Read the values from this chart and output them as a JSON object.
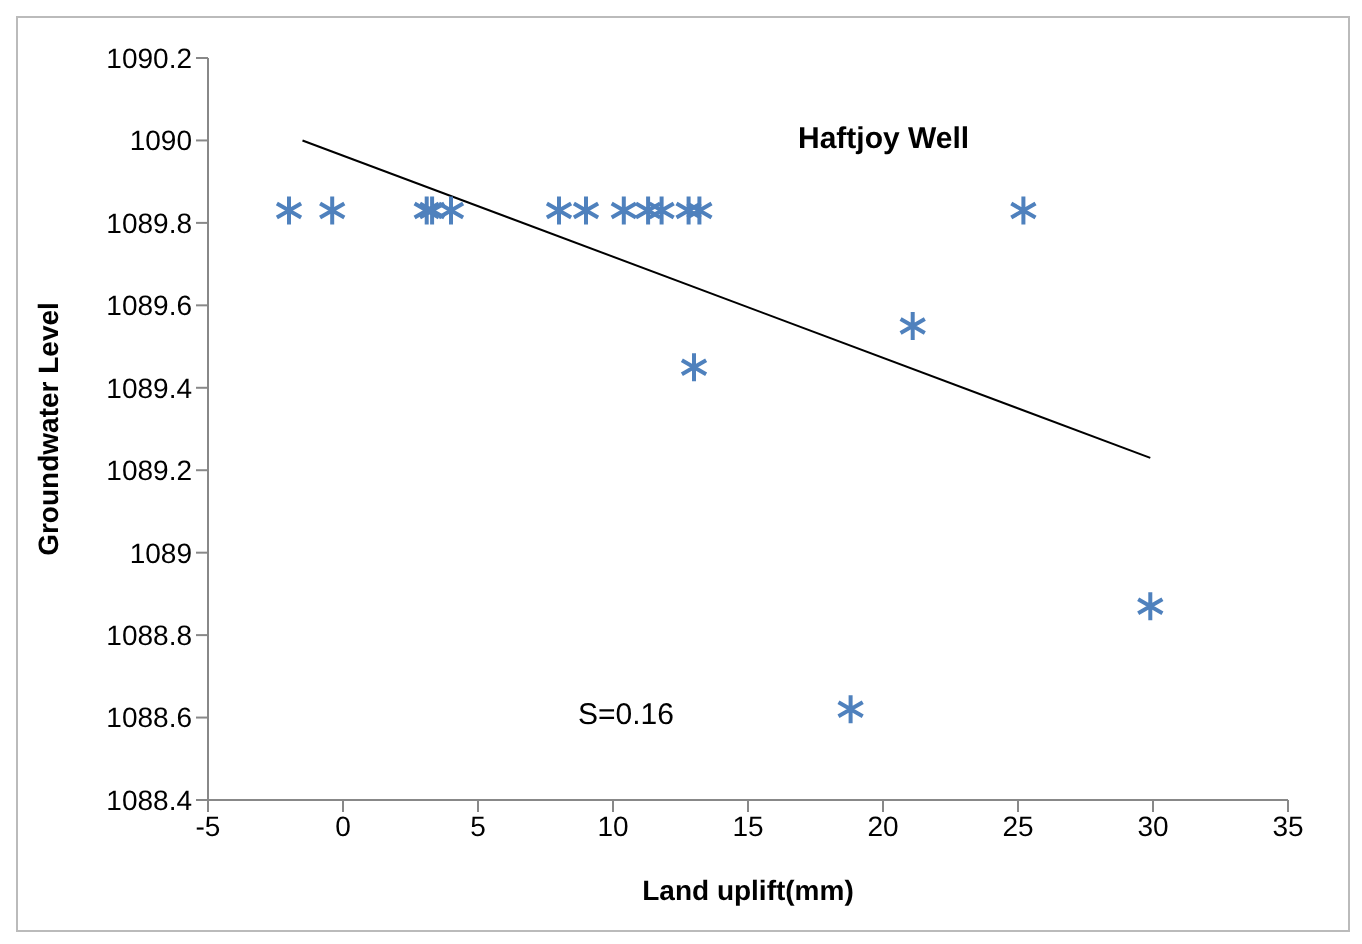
{
  "chart_data": {
    "type": "scatter",
    "title": "Haftjoy  Well",
    "xlabel": "Land uplift(mm)",
    "ylabel": "Groundwater Level",
    "xlim": [
      -5,
      35
    ],
    "xticks": [
      -5,
      0,
      5,
      10,
      15,
      20,
      25,
      30,
      35
    ],
    "ylim": [
      1088.4,
      1090.2
    ],
    "yticks": [
      {
        "value": 1088.4,
        "label": "1088.4"
      },
      {
        "value": 1088.6,
        "label": "1088.6"
      },
      {
        "value": 1088.8,
        "label": "1088.8"
      },
      {
        "value": 1089,
        "label": "1089"
      },
      {
        "value": 1089.2,
        "label": "1089.2"
      },
      {
        "value": 1089.4,
        "label": "1089.4"
      },
      {
        "value": 1089.6,
        "label": "1089.6"
      },
      {
        "value": 1089.8,
        "label": "1089.8"
      },
      {
        "value": 1090,
        "label": "1090"
      },
      {
        "value": 1090.2,
        "label": "1090.2"
      }
    ],
    "grid": false,
    "series": [
      {
        "marker": "cross",
        "color": "#4f81bd",
        "x": [
          -2,
          -0.4,
          3.1,
          3.3,
          4,
          8,
          9,
          10.4,
          11.3,
          11.8,
          12.8,
          13.2,
          13,
          18.8,
          21.1,
          25.2,
          29.9
        ],
        "values": [
          1089.83,
          1089.83,
          1089.83,
          1089.83,
          1089.83,
          1089.83,
          1089.83,
          1089.83,
          1089.83,
          1089.83,
          1089.83,
          1089.83,
          1089.45,
          1088.62,
          1089.55,
          1089.83,
          1088.87
        ]
      },
      {
        "type": "line",
        "color": "#000000",
        "x": [
          -1.5,
          29.9
        ],
        "values": [
          1090,
          1089.23
        ]
      }
    ],
    "annotations": [
      "S=0.16"
    ]
  }
}
